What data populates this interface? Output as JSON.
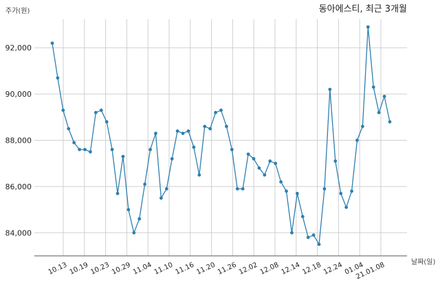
{
  "chart_data": {
    "type": "line",
    "title": "동아에스티, 최근 3개월",
    "ylabel": "주가(원)",
    "xlabel": "날짜(일)",
    "ylim": [
      83000,
      93000
    ],
    "yticks": [
      84000,
      86000,
      88000,
      90000,
      92000
    ],
    "ytick_labels": [
      "84,000",
      "86,000",
      "88,000",
      "90,000",
      "92,000"
    ],
    "xticks": [
      "10.13",
      "10.19",
      "10.23",
      "10.29",
      "11.04",
      "11.10",
      "11.16",
      "11.20",
      "11.26",
      "12.02",
      "12.08",
      "12.14",
      "12.18",
      "12.24",
      "01.04",
      "21.01.08"
    ],
    "grid": true,
    "line_color": "#2e7fb0",
    "series": [
      {
        "values": [
          92200,
          90700,
          89300,
          88500,
          87900,
          87600,
          87600,
          87500,
          89200,
          89300,
          88800,
          87600,
          85700,
          87300,
          85000,
          84000,
          84600,
          86100,
          87600,
          88300,
          85500,
          85900,
          87200,
          88400,
          88300,
          88400,
          87700,
          86500,
          88600,
          88500,
          89200,
          89300,
          88600,
          87600,
          85900,
          85900,
          87400,
          87200,
          86800,
          86500,
          87100,
          87000,
          86200,
          85800,
          84000,
          85700,
          84700,
          83800,
          83900,
          83500,
          85900,
          90200,
          87100,
          85700,
          85100,
          85800,
          88000,
          88600,
          92900,
          90300,
          89200,
          89900,
          88800
        ]
      }
    ]
  }
}
